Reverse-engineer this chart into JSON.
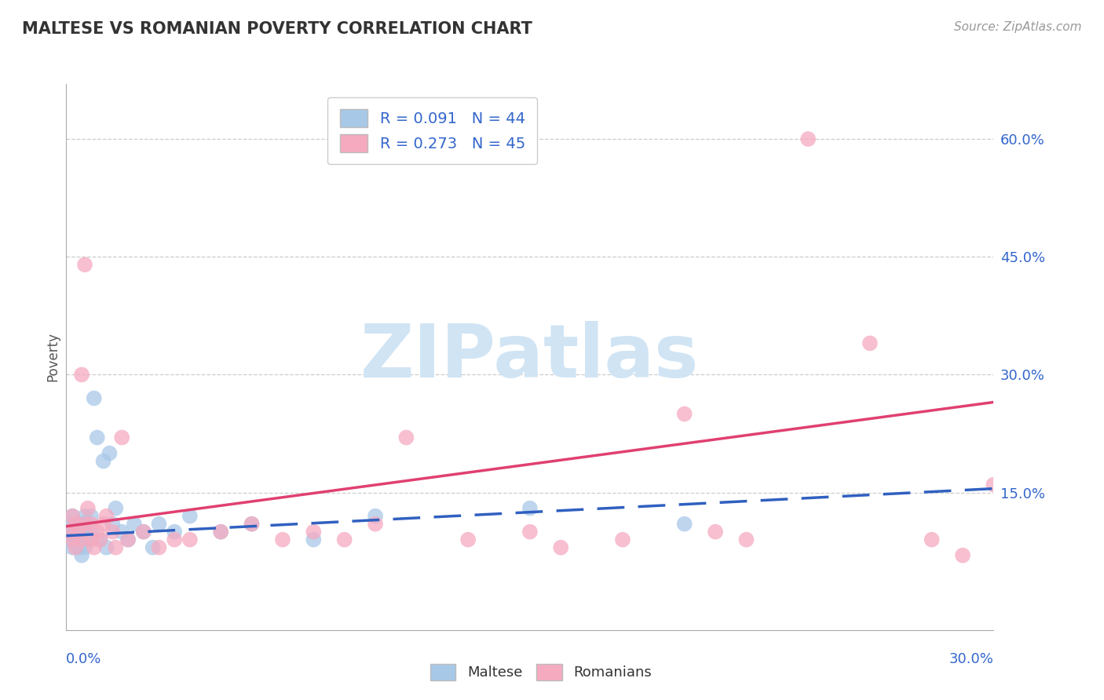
{
  "title": "MALTESE VS ROMANIAN POVERTY CORRELATION CHART",
  "source": "Source: ZipAtlas.com",
  "xlim": [
    0.0,
    0.3
  ],
  "ylim": [
    -0.025,
    0.67
  ],
  "ylabel_ticks": [
    0.15,
    0.3,
    0.45,
    0.6
  ],
  "ylabel_labels": [
    "15.0%",
    "30.0%",
    "45.0%",
    "60.0%"
  ],
  "maltese_R": 0.091,
  "maltese_N": 44,
  "romanian_R": 0.273,
  "romanian_N": 45,
  "maltese_color": "#a8c8e8",
  "romanian_color": "#f5aac0",
  "maltese_line_color": "#3060c0",
  "romanian_line_color": "#e04070",
  "legend_text_color": "#3366cc",
  "legend_R_color": "#3366cc",
  "watermark_text": "ZIPatlas",
  "watermark_color": "#d0e4f4",
  "maltese_x": [
    0.001,
    0.001,
    0.001,
    0.002,
    0.002,
    0.002,
    0.003,
    0.003,
    0.003,
    0.004,
    0.004,
    0.004,
    0.005,
    0.005,
    0.005,
    0.005,
    0.006,
    0.006,
    0.007,
    0.007,
    0.008,
    0.008,
    0.009,
    0.01,
    0.011,
    0.012,
    0.013,
    0.014,
    0.015,
    0.016,
    0.018,
    0.02,
    0.022,
    0.025,
    0.028,
    0.03,
    0.035,
    0.04,
    0.05,
    0.06,
    0.08,
    0.1,
    0.15,
    0.2
  ],
  "maltese_y": [
    0.1,
    0.11,
    0.09,
    0.08,
    0.1,
    0.12,
    0.09,
    0.11,
    0.1,
    0.08,
    0.11,
    0.1,
    0.07,
    0.09,
    0.11,
    0.1,
    0.08,
    0.12,
    0.09,
    0.11,
    0.1,
    0.12,
    0.27,
    0.22,
    0.09,
    0.19,
    0.08,
    0.2,
    0.11,
    0.13,
    0.1,
    0.09,
    0.11,
    0.1,
    0.08,
    0.11,
    0.1,
    0.12,
    0.1,
    0.11,
    0.09,
    0.12,
    0.13,
    0.11
  ],
  "romanian_x": [
    0.001,
    0.002,
    0.002,
    0.003,
    0.003,
    0.004,
    0.005,
    0.005,
    0.006,
    0.006,
    0.007,
    0.008,
    0.008,
    0.009,
    0.01,
    0.011,
    0.012,
    0.013,
    0.015,
    0.016,
    0.018,
    0.02,
    0.025,
    0.03,
    0.035,
    0.04,
    0.05,
    0.06,
    0.07,
    0.08,
    0.09,
    0.1,
    0.11,
    0.13,
    0.15,
    0.16,
    0.18,
    0.2,
    0.21,
    0.22,
    0.24,
    0.26,
    0.28,
    0.29,
    0.3
  ],
  "romanian_y": [
    0.1,
    0.09,
    0.12,
    0.08,
    0.11,
    0.1,
    0.09,
    0.3,
    0.11,
    0.44,
    0.13,
    0.11,
    0.09,
    0.08,
    0.1,
    0.09,
    0.11,
    0.12,
    0.1,
    0.08,
    0.22,
    0.09,
    0.1,
    0.08,
    0.09,
    0.09,
    0.1,
    0.11,
    0.09,
    0.1,
    0.09,
    0.11,
    0.22,
    0.09,
    0.1,
    0.08,
    0.09,
    0.25,
    0.1,
    0.09,
    0.6,
    0.34,
    0.09,
    0.07,
    0.16
  ],
  "maltese_line_x": [
    0.0,
    0.3
  ],
  "maltese_line_y": [
    0.095,
    0.155
  ],
  "romanian_line_x": [
    0.0,
    0.3
  ],
  "romanian_line_y": [
    0.107,
    0.265
  ]
}
